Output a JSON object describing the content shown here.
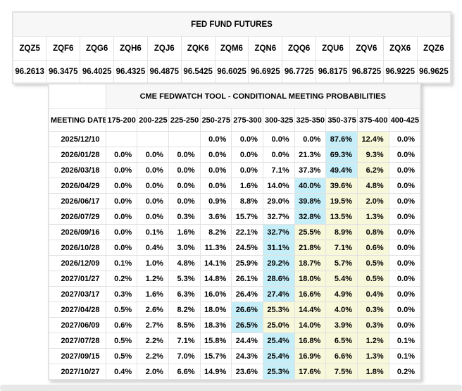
{
  "fed_fund_futures": {
    "title": "FED FUND FUTURES",
    "contracts": [
      {
        "symbol": "ZQZ5",
        "price": "96.2613"
      },
      {
        "symbol": "ZQF6",
        "price": "96.3475"
      },
      {
        "symbol": "ZQG6",
        "price": "96.4025"
      },
      {
        "symbol": "ZQH6",
        "price": "96.4325"
      },
      {
        "symbol": "ZQJ6",
        "price": "96.4875"
      },
      {
        "symbol": "ZQK6",
        "price": "96.5425"
      },
      {
        "symbol": "ZQM6",
        "price": "96.6025"
      },
      {
        "symbol": "ZQN6",
        "price": "96.6925"
      },
      {
        "symbol": "ZQQ6",
        "price": "96.7725"
      },
      {
        "symbol": "ZQU6",
        "price": "96.8175"
      },
      {
        "symbol": "ZQV6",
        "price": "96.8725"
      },
      {
        "symbol": "ZQX6",
        "price": "96.9225"
      },
      {
        "symbol": "ZQZ6",
        "price": "96.9625"
      }
    ]
  },
  "fedwatch": {
    "title": "CME FEDWATCH TOOL - CONDITIONAL MEETING PROBABILITIES",
    "date_column_header": "MEETING DATE",
    "rate_range_headers": [
      "175-200",
      "200-225",
      "225-250",
      "250-275",
      "275-300",
      "300-325",
      "325-350",
      "350-375",
      "375-400",
      "400-425"
    ],
    "rows": [
      {
        "date": "2025/12/10",
        "values": [
          "",
          "",
          "",
          "0.0%",
          "0.0%",
          "0.0%",
          "0.0%",
          "87.6%",
          "12.4%",
          "0.0%"
        ],
        "highlights": [
          "",
          "",
          "",
          "",
          "",
          "",
          "",
          "cyan",
          "yellow",
          ""
        ]
      },
      {
        "date": "2026/01/28",
        "values": [
          "0.0%",
          "0.0%",
          "0.0%",
          "0.0%",
          "0.0%",
          "0.0%",
          "21.3%",
          "69.3%",
          "9.3%",
          "0.0%"
        ],
        "highlights": [
          "",
          "",
          "",
          "",
          "",
          "",
          "",
          "cyan",
          "yellow",
          ""
        ]
      },
      {
        "date": "2026/03/18",
        "values": [
          "0.0%",
          "0.0%",
          "0.0%",
          "0.0%",
          "0.0%",
          "7.1%",
          "37.3%",
          "49.4%",
          "6.2%",
          "0.0%"
        ],
        "highlights": [
          "",
          "",
          "",
          "",
          "",
          "",
          "",
          "cyan",
          "yellow",
          ""
        ]
      },
      {
        "date": "2026/04/29",
        "values": [
          "0.0%",
          "0.0%",
          "0.0%",
          "0.0%",
          "1.6%",
          "14.0%",
          "40.0%",
          "39.6%",
          "4.8%",
          "0.0%"
        ],
        "highlights": [
          "",
          "",
          "",
          "",
          "",
          "",
          "cyan",
          "yellow",
          "yellow",
          ""
        ]
      },
      {
        "date": "2026/06/17",
        "values": [
          "0.0%",
          "0.0%",
          "0.0%",
          "0.9%",
          "8.8%",
          "29.0%",
          "39.8%",
          "19.5%",
          "2.0%",
          "0.0%"
        ],
        "highlights": [
          "",
          "",
          "",
          "",
          "",
          "",
          "cyan",
          "yellow",
          "yellow",
          ""
        ]
      },
      {
        "date": "2026/07/29",
        "values": [
          "0.0%",
          "0.0%",
          "0.3%",
          "3.6%",
          "15.7%",
          "32.7%",
          "32.8%",
          "13.5%",
          "1.3%",
          "0.0%"
        ],
        "highlights": [
          "",
          "",
          "",
          "",
          "",
          "",
          "cyan",
          "yellow",
          "yellow",
          ""
        ]
      },
      {
        "date": "2026/09/16",
        "values": [
          "0.0%",
          "0.1%",
          "1.6%",
          "8.2%",
          "22.1%",
          "32.7%",
          "25.5%",
          "8.9%",
          "0.8%",
          "0.0%"
        ],
        "highlights": [
          "",
          "",
          "",
          "",
          "",
          "cyan",
          "yellow",
          "yellow",
          "yellow",
          ""
        ]
      },
      {
        "date": "2026/10/28",
        "values": [
          "0.0%",
          "0.4%",
          "3.0%",
          "11.3%",
          "24.5%",
          "31.1%",
          "21.8%",
          "7.1%",
          "0.6%",
          "0.0%"
        ],
        "highlights": [
          "",
          "",
          "",
          "",
          "",
          "cyan",
          "yellow",
          "yellow",
          "yellow",
          ""
        ]
      },
      {
        "date": "2026/12/09",
        "values": [
          "0.1%",
          "1.0%",
          "4.8%",
          "14.1%",
          "25.9%",
          "29.2%",
          "18.7%",
          "5.7%",
          "0.5%",
          "0.0%"
        ],
        "highlights": [
          "",
          "",
          "",
          "",
          "",
          "cyan",
          "yellow",
          "yellow",
          "yellow",
          ""
        ]
      },
      {
        "date": "2027/01/27",
        "values": [
          "0.2%",
          "1.2%",
          "5.3%",
          "14.8%",
          "26.1%",
          "28.6%",
          "18.0%",
          "5.4%",
          "0.5%",
          "0.0%"
        ],
        "highlights": [
          "",
          "",
          "",
          "",
          "",
          "cyan",
          "yellow",
          "yellow",
          "yellow",
          ""
        ]
      },
      {
        "date": "2027/03/17",
        "values": [
          "0.3%",
          "1.6%",
          "6.3%",
          "16.0%",
          "26.4%",
          "27.4%",
          "16.6%",
          "4.9%",
          "0.4%",
          "0.0%"
        ],
        "highlights": [
          "",
          "",
          "",
          "",
          "",
          "cyan",
          "yellow",
          "yellow",
          "yellow",
          ""
        ]
      },
      {
        "date": "2027/04/28",
        "values": [
          "0.5%",
          "2.6%",
          "8.2%",
          "18.0%",
          "26.6%",
          "25.3%",
          "14.4%",
          "4.0%",
          "0.3%",
          "0.0%"
        ],
        "highlights": [
          "",
          "",
          "",
          "",
          "cyan",
          "yellow",
          "yellow",
          "yellow",
          "yellow",
          ""
        ]
      },
      {
        "date": "2027/06/09",
        "values": [
          "0.6%",
          "2.7%",
          "8.5%",
          "18.3%",
          "26.5%",
          "25.0%",
          "14.0%",
          "3.9%",
          "0.3%",
          "0.0%"
        ],
        "highlights": [
          "",
          "",
          "",
          "",
          "cyan",
          "yellow",
          "yellow",
          "yellow",
          "yellow",
          ""
        ]
      },
      {
        "date": "2027/07/28",
        "values": [
          "0.5%",
          "2.2%",
          "7.1%",
          "15.8%",
          "24.4%",
          "25.4%",
          "16.8%",
          "6.5%",
          "1.2%",
          "0.1%"
        ],
        "highlights": [
          "",
          "",
          "",
          "",
          "",
          "cyan",
          "yellow",
          "yellow",
          "yellow",
          ""
        ]
      },
      {
        "date": "2027/09/15",
        "values": [
          "0.5%",
          "2.2%",
          "7.0%",
          "15.7%",
          "24.3%",
          "25.4%",
          "16.9%",
          "6.6%",
          "1.3%",
          "0.1%"
        ],
        "highlights": [
          "",
          "",
          "",
          "",
          "",
          "cyan",
          "yellow",
          "yellow",
          "yellow",
          ""
        ]
      },
      {
        "date": "2027/10/27",
        "values": [
          "0.4%",
          "2.0%",
          "6.6%",
          "14.9%",
          "23.6%",
          "25.3%",
          "17.6%",
          "7.5%",
          "1.8%",
          "0.2%"
        ],
        "highlights": [
          "",
          "",
          "",
          "",
          "",
          "cyan",
          "yellow",
          "yellow",
          "yellow",
          ""
        ]
      }
    ]
  },
  "colors": {
    "cyan": "#c5eef8",
    "yellow": "#f7f7d9",
    "title_bg": "#f7f7f7",
    "border": "#e2e2e2",
    "scrollbar": "#e8e8e8"
  }
}
